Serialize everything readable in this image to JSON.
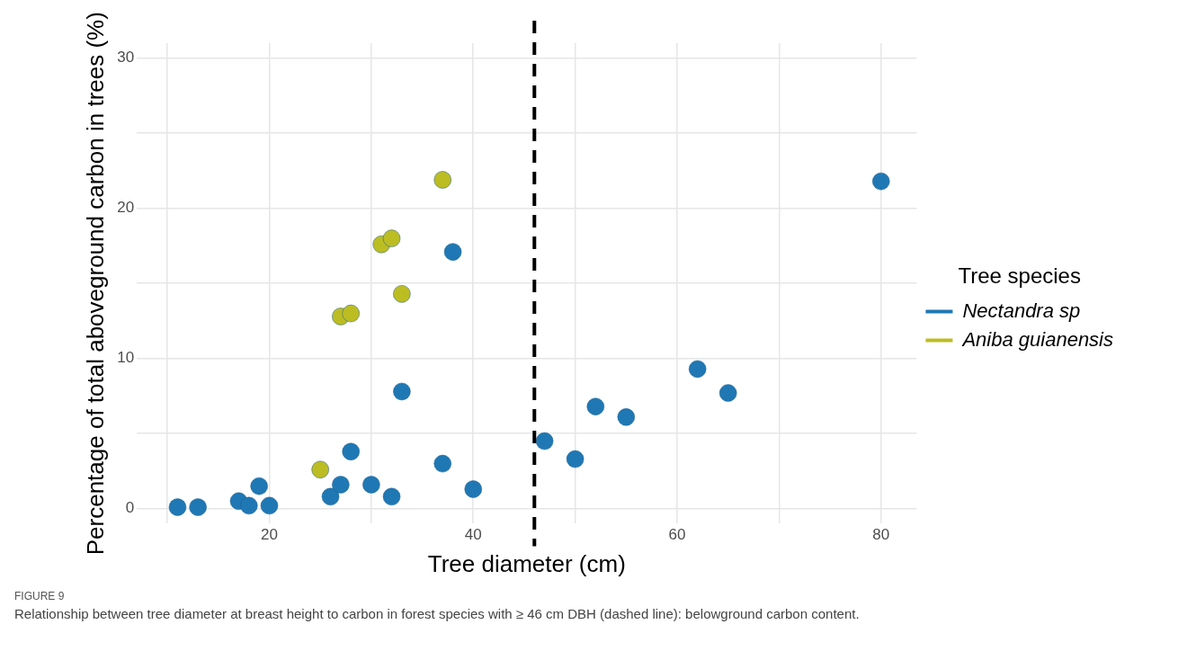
{
  "chart_data": {
    "type": "scatter",
    "xlabel": "Tree diameter (cm)",
    "ylabel": "Percentage of total aboveground carbon in trees (%)",
    "legend_title": "Tree species",
    "legend": "right",
    "grid": true,
    "marker": "circle",
    "xlim": [
      7,
      83.5
    ],
    "ylim": [
      -1,
      31
    ],
    "xticks": [
      {
        "value": 10,
        "label": null
      },
      20,
      {
        "value": 30,
        "label": null
      },
      40,
      {
        "value": 50,
        "label": null
      },
      60,
      {
        "value": 70,
        "label": null
      },
      80
    ],
    "yticks": [
      0,
      {
        "value": 5,
        "label": null
      },
      10,
      {
        "value": 15,
        "label": null
      },
      20,
      {
        "value": 25,
        "label": null
      },
      30
    ],
    "series": [
      {
        "name": "Nectandra sp",
        "color": "#1f78b4",
        "x": [
          11,
          13,
          17,
          18,
          19,
          20,
          26,
          27,
          28,
          30,
          32,
          33,
          37,
          38,
          40,
          47,
          50,
          52,
          55,
          62,
          65,
          80
        ],
        "values": [
          0.1,
          0.1,
          0.5,
          0.2,
          1.5,
          0.2,
          0.8,
          1.6,
          3.8,
          1.6,
          0.8,
          7.8,
          3.0,
          17.1,
          1.3,
          4.5,
          3.3,
          6.8,
          6.1,
          9.3,
          7.7,
          21.8
        ]
      },
      {
        "name": "Aniba guianensis",
        "color": "#bcbd22",
        "x": [
          25,
          27,
          28,
          31,
          32,
          33,
          37
        ],
        "values": [
          2.6,
          12.8,
          13.0,
          17.6,
          18.0,
          14.3,
          21.9
        ]
      }
    ],
    "ref_lines": [
      {
        "axis": "x",
        "value": 46,
        "color": "#000000",
        "line_style": "dashed"
      }
    ],
    "annotations": [
      "FIGURE 9",
      "Relationship between tree diameter at breast height to carbon in forest species with ≥ 46 cm DBH (dashed line): belowground carbon content."
    ]
  }
}
